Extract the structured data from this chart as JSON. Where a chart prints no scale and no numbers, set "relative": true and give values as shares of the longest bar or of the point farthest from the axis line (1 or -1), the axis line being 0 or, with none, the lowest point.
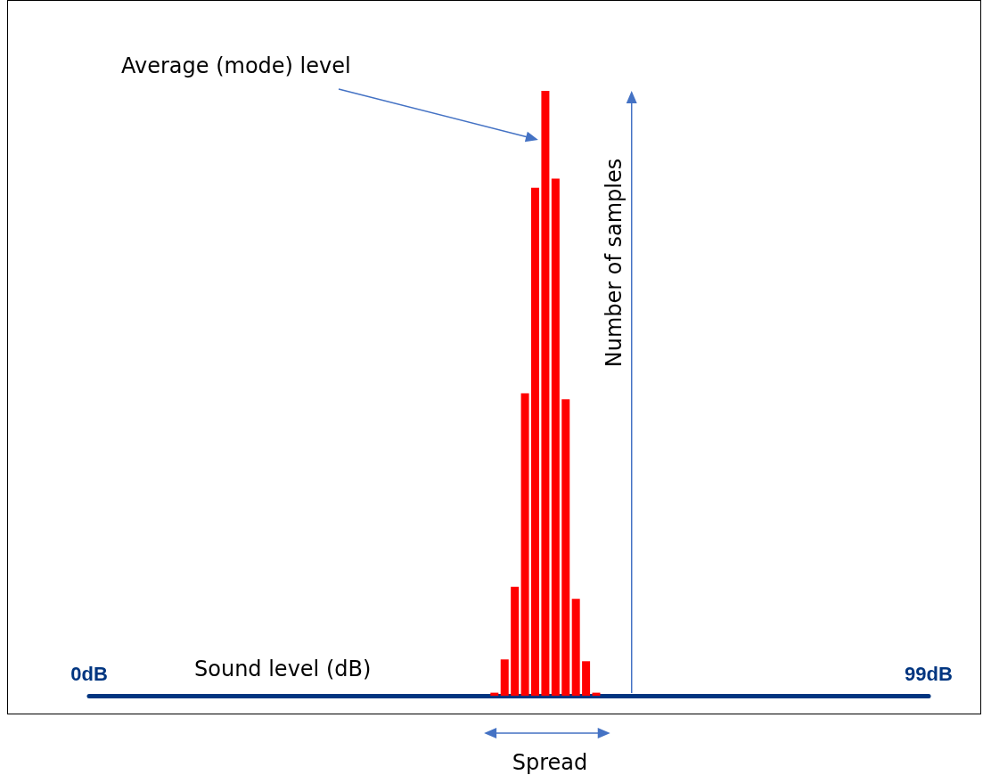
{
  "chart_data": {
    "type": "bar",
    "xlabel": "Sound level (dB)",
    "ylabel": "Number of samples",
    "x": [
      47.8,
      49.0,
      50.2,
      51.4,
      52.6,
      53.8,
      55.0,
      56.2,
      57.4,
      58.6,
      59.8
    ],
    "values": [
      0.005,
      0.06,
      0.18,
      0.5,
      0.84,
      1,
      0.855,
      0.49,
      0.16,
      0.057,
      0.005
    ],
    "color": "#ff0000",
    "relative": true,
    "xlim": [
      0,
      99
    ],
    "xticks": [
      {
        "value": 0,
        "label": "0dB"
      },
      {
        "value": 99,
        "label": "99dB"
      }
    ],
    "annotations": [
      "Average (mode) level",
      "Spread"
    ]
  }
}
